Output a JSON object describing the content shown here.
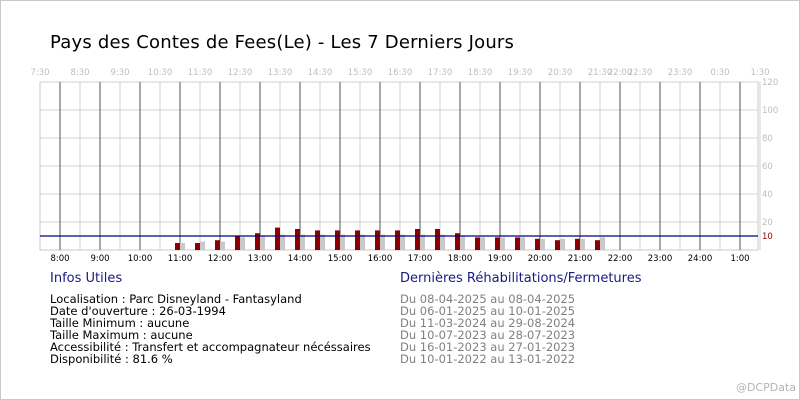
{
  "chart_data": {
    "type": "bar",
    "title": "Pays des Contes de Fees(Le) - Les 7 Derniers Jours",
    "top_axis_labels": [
      "7:30",
      "8:30",
      "9:30",
      "10:30",
      "11:30",
      "12:30",
      "13:30",
      "14:30",
      "15:30",
      "16:30",
      "17:30",
      "18:30",
      "19:30",
      "20:30",
      "21:30",
      "22:00",
      "22:30",
      "23:30",
      "0:30",
      "1:30"
    ],
    "bottom_axis_labels": [
      "8:00",
      "9:00",
      "10:00",
      "11:00",
      "12:00",
      "13:00",
      "14:00",
      "15:00",
      "16:00",
      "17:00",
      "18:00",
      "19:00",
      "20:00",
      "21:00",
      "22:00",
      "23:00",
      "24:00",
      "1:00"
    ],
    "ylim": [
      0,
      120
    ],
    "y_ticks": [
      20,
      40,
      60,
      80,
      100,
      120
    ],
    "reference_line": {
      "value": 10,
      "label": "10",
      "color": "#000080"
    },
    "grid": true,
    "series": [
      {
        "color": "#8b0000",
        "points": [
          {
            "x": "11:00",
            "y": 5
          },
          {
            "x": "11:30",
            "y": 5
          },
          {
            "x": "12:00",
            "y": 7
          },
          {
            "x": "12:30",
            "y": 10
          },
          {
            "x": "13:00",
            "y": 12
          },
          {
            "x": "13:30",
            "y": 16
          },
          {
            "x": "14:00",
            "y": 15
          },
          {
            "x": "14:30",
            "y": 14
          },
          {
            "x": "15:00",
            "y": 14
          },
          {
            "x": "15:30",
            "y": 14
          },
          {
            "x": "16:00",
            "y": 14
          },
          {
            "x": "16:30",
            "y": 14
          },
          {
            "x": "17:00",
            "y": 15
          },
          {
            "x": "17:30",
            "y": 15
          },
          {
            "x": "18:00",
            "y": 12
          },
          {
            "x": "18:30",
            "y": 9
          },
          {
            "x": "19:00",
            "y": 9
          },
          {
            "x": "19:30",
            "y": 9
          },
          {
            "x": "20:00",
            "y": 8
          },
          {
            "x": "20:30",
            "y": 7
          },
          {
            "x": "21:00",
            "y": 8
          },
          {
            "x": "21:30",
            "y": 7
          }
        ]
      },
      {
        "color": "#c8c8c8",
        "points": [
          {
            "x": "11:00",
            "y": 5
          },
          {
            "x": "11:30",
            "y": 6
          },
          {
            "x": "12:00",
            "y": 6
          },
          {
            "x": "12:30",
            "y": 9
          },
          {
            "x": "13:00",
            "y": 10
          },
          {
            "x": "13:30",
            "y": 11
          },
          {
            "x": "14:00",
            "y": 11
          },
          {
            "x": "14:30",
            "y": 11
          },
          {
            "x": "15:00",
            "y": 11
          },
          {
            "x": "15:30",
            "y": 11
          },
          {
            "x": "16:00",
            "y": 11
          },
          {
            "x": "16:30",
            "y": 11
          },
          {
            "x": "17:00",
            "y": 11
          },
          {
            "x": "17:30",
            "y": 11
          },
          {
            "x": "18:00",
            "y": 10
          },
          {
            "x": "18:30",
            "y": 9
          },
          {
            "x": "19:00",
            "y": 9
          },
          {
            "x": "19:30",
            "y": 9
          },
          {
            "x": "20:00",
            "y": 8
          },
          {
            "x": "20:30",
            "y": 8
          },
          {
            "x": "21:00",
            "y": 8
          },
          {
            "x": "21:30",
            "y": 9
          }
        ]
      }
    ]
  },
  "info": {
    "heading": "Infos Utiles",
    "lines": [
      "Localisation : Parc Disneyland - Fantasyland",
      "Date d'ouverture : 26-03-1994",
      "Taille Minimum : aucune",
      "Taille Maximum : aucune",
      "Accessibilité : Transfert et accompagnateur nécéssaires",
      "Disponibilité : 81.6 %"
    ]
  },
  "closures": {
    "heading": "Dernières Réhabilitations/Fermetures",
    "lines": [
      "Du 08-04-2025 au 08-04-2025",
      "Du 06-01-2025 au 10-01-2025",
      "Du 11-03-2024 au 29-08-2024",
      "Du 10-07-2023 au 28-07-2023",
      "Du 16-01-2023 au 27-01-2023",
      "Du 10-01-2022 au 13-01-2022"
    ]
  },
  "watermark": "@DCPData"
}
